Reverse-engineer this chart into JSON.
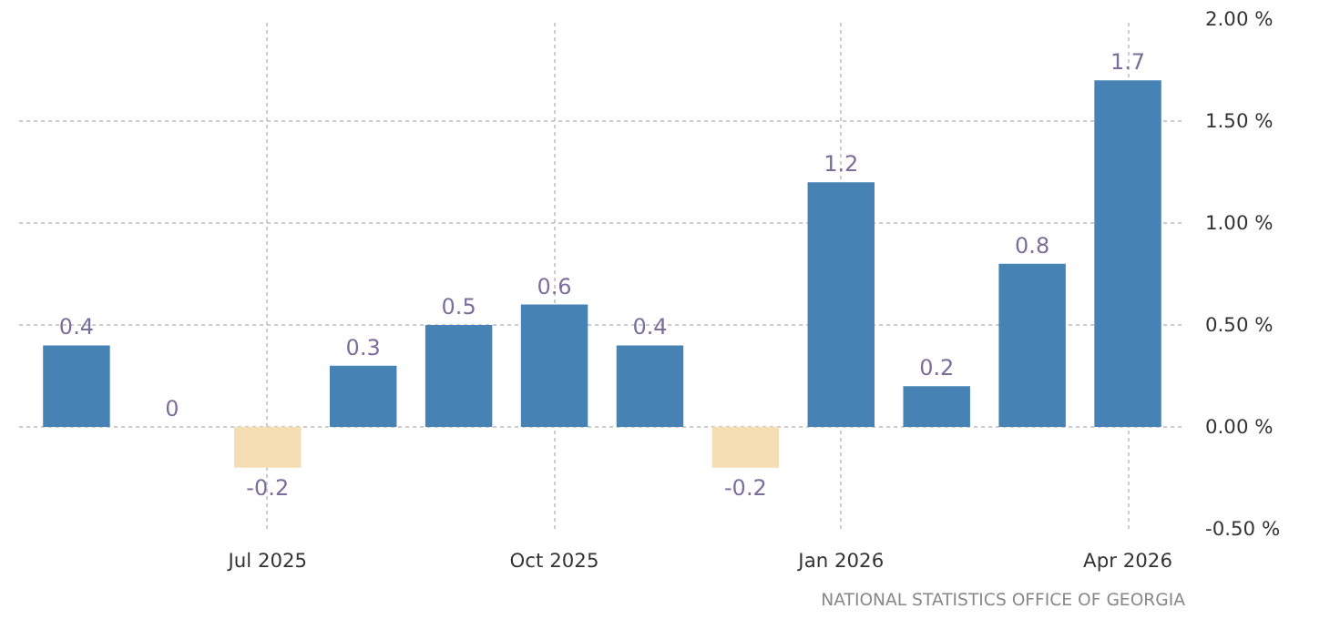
{
  "chart_data": {
    "type": "bar",
    "categories": [
      null,
      null,
      "Jul 2025",
      null,
      null,
      "Oct 2025",
      null,
      null,
      "Jan 2026",
      null,
      null,
      "Apr 2026"
    ],
    "values": [
      0.4,
      0,
      -0.2,
      0.3,
      0.5,
      0.6,
      0.4,
      -0.2,
      1.2,
      0.2,
      0.8,
      1.7
    ],
    "colors": [
      "#4682b4",
      "#4682b4",
      "#f5deb3",
      "#4682b4",
      "#4682b4",
      "#4682b4",
      "#4682b4",
      "#f5deb3",
      "#4682b4",
      "#4682b4",
      "#4682b4",
      "#4682b4"
    ],
    "ylim": [
      -0.5,
      2.0
    ],
    "yticks": [
      {
        "value": -0.5,
        "label": "-0.50 %"
      },
      {
        "value": 0,
        "label": "0.00 %"
      },
      {
        "value": 0.5,
        "label": "0.50 %"
      },
      {
        "value": 1.0,
        "label": "1.00 %"
      },
      {
        "value": 1.5,
        "label": "1.50 %"
      },
      {
        "value": 2.0,
        "label": "2.00 %"
      }
    ],
    "grid": true,
    "data_labels": true,
    "annotations": [
      "NATIONAL STATISTICS OFFICE OF GEORGIA"
    ]
  }
}
